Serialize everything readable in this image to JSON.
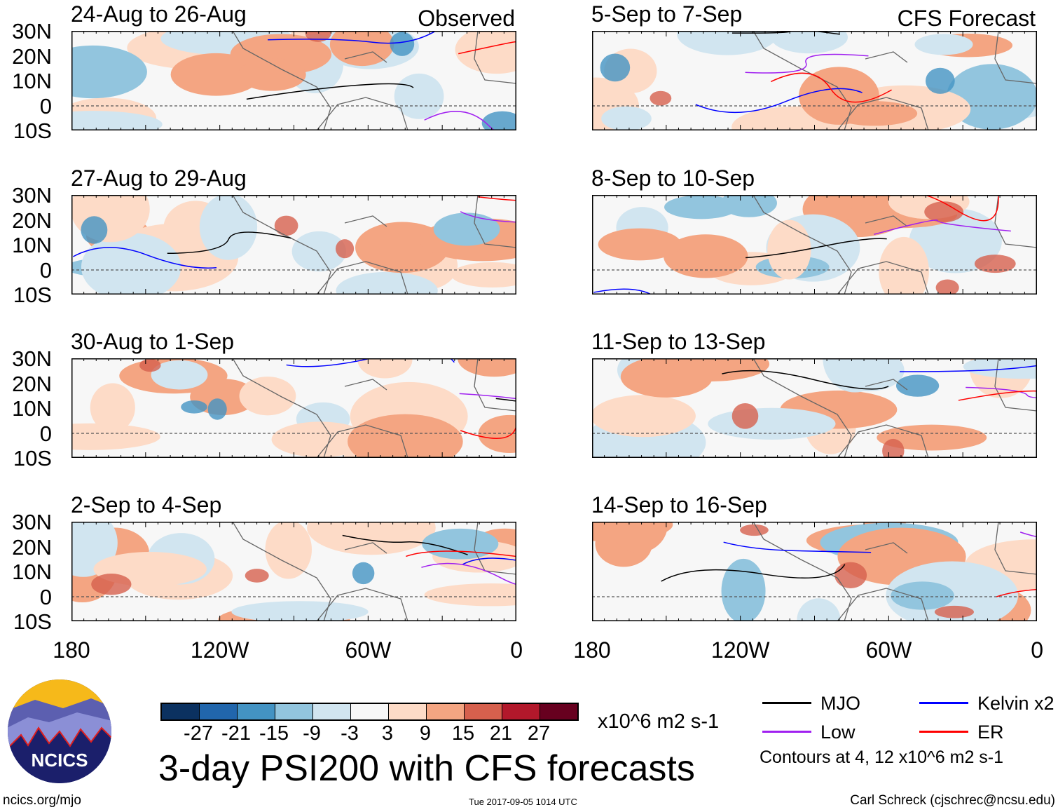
{
  "panels": [
    {
      "title": "24-Aug to 26-Aug",
      "label": "Observed"
    },
    {
      "title": "5-Sep to 7-Sep",
      "label": "CFS Forecast"
    },
    {
      "title": "27-Aug to 29-Aug",
      "label": ""
    },
    {
      "title": "8-Sep to 10-Sep",
      "label": ""
    },
    {
      "title": "30-Aug to 1-Sep",
      "label": ""
    },
    {
      "title": "11-Sep to 13-Sep",
      "label": ""
    },
    {
      "title": "2-Sep to 4-Sep",
      "label": ""
    },
    {
      "title": "14-Sep to 16-Sep",
      "label": ""
    }
  ],
  "lat_labels": [
    "30N",
    "20N",
    "10N",
    "0",
    "10S"
  ],
  "lon_labels": [
    "180",
    "120W",
    "60W",
    "0"
  ],
  "colorbar": {
    "colors": [
      "#0b3160",
      "#2166ac",
      "#4393c3",
      "#92c5de",
      "#d1e5f0",
      "#f7f7f7",
      "#fddbc7",
      "#f4a582",
      "#d6604d",
      "#b2182b",
      "#67001f"
    ],
    "ticks": [
      "-27",
      "-21",
      "-15",
      "-9",
      "-3",
      "3",
      "9",
      "15",
      "21",
      "27"
    ],
    "units": "x10^6 m2 s-1"
  },
  "title": "3-day PSI200 with CFS forecasts",
  "legend": [
    {
      "label": "MJO",
      "color": "#000000"
    },
    {
      "label": "Kelvin x2",
      "color": "#0000ff"
    },
    {
      "label": "Low",
      "color": "#a020f0"
    },
    {
      "label": "ER",
      "color": "#ff0000"
    }
  ],
  "contours_note": "Contours at 4, 12 x10^6 m2 s-1",
  "footer": {
    "left": "ncics.org/mjo",
    "center": "Tue 2017-09-05 1014 UTC",
    "right": "Carl Schreck (cjschrec@ncsu.edu)"
  },
  "logo": {
    "text": "NCICS"
  }
}
